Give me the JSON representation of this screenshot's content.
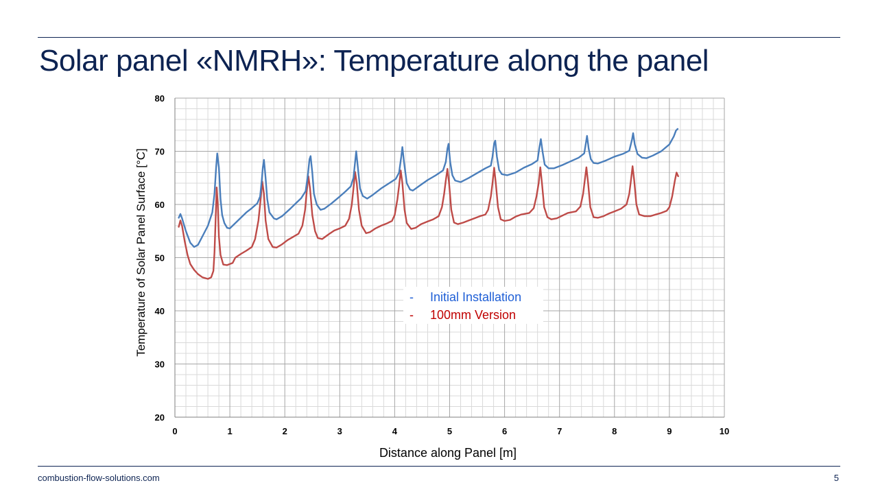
{
  "slide": {
    "title": "Solar panel «NMRH»: Temperature along the panel",
    "footer_site": "combustion-flow-solutions.com",
    "page_number": "5"
  },
  "colors": {
    "navy": "#0d2352",
    "blue_series": "#4a7ebb",
    "red_series": "#be4b48",
    "blue_legend_text": "#1f5fd6",
    "red_legend_text": "#c00000"
  },
  "chart_data": {
    "type": "line",
    "title": "",
    "xlabel": "Distance along Panel [m]",
    "ylabel": "Temperature of Solar Panel Surface [°C]",
    "xlim": [
      0,
      10
    ],
    "ylim": [
      20,
      80
    ],
    "x_ticks": [
      "0",
      "1",
      "2",
      "3",
      "4",
      "5",
      "6",
      "7",
      "8",
      "9",
      "10"
    ],
    "y_ticks": [
      "20",
      "30",
      "40",
      "50",
      "60",
      "70",
      "80"
    ],
    "grid": true,
    "legend_position": "center",
    "series": [
      {
        "name": "Initial Installation",
        "legend_marker": "-",
        "color": "#4a7ebb",
        "points": [
          [
            0.07,
            57.5
          ],
          [
            0.1,
            58.2
          ],
          [
            0.13,
            57.4
          ],
          [
            0.2,
            55
          ],
          [
            0.28,
            52.8
          ],
          [
            0.35,
            52
          ],
          [
            0.42,
            52.4
          ],
          [
            0.5,
            54
          ],
          [
            0.6,
            56
          ],
          [
            0.68,
            58.5
          ],
          [
            0.72,
            62
          ],
          [
            0.75,
            67
          ],
          [
            0.77,
            69.6
          ],
          [
            0.8,
            67
          ],
          [
            0.83,
            61
          ],
          [
            0.86,
            58
          ],
          [
            0.9,
            56.5
          ],
          [
            0.95,
            55.6
          ],
          [
            1.0,
            55.5
          ],
          [
            1.1,
            56.5
          ],
          [
            1.2,
            57.5
          ],
          [
            1.3,
            58.5
          ],
          [
            1.4,
            59.3
          ],
          [
            1.5,
            60.2
          ],
          [
            1.55,
            61.5
          ],
          [
            1.58,
            64.5
          ],
          [
            1.6,
            67
          ],
          [
            1.62,
            68.4
          ],
          [
            1.65,
            65
          ],
          [
            1.68,
            61
          ],
          [
            1.72,
            58.5
          ],
          [
            1.8,
            57.4
          ],
          [
            1.85,
            57.2
          ],
          [
            1.95,
            57.8
          ],
          [
            2.1,
            59.2
          ],
          [
            2.2,
            60.2
          ],
          [
            2.3,
            61.2
          ],
          [
            2.38,
            62.5
          ],
          [
            2.42,
            65.5
          ],
          [
            2.45,
            68.5
          ],
          [
            2.47,
            69.1
          ],
          [
            2.5,
            66
          ],
          [
            2.53,
            62
          ],
          [
            2.58,
            60
          ],
          [
            2.65,
            59
          ],
          [
            2.72,
            59.2
          ],
          [
            2.85,
            60.2
          ],
          [
            3.0,
            61.5
          ],
          [
            3.1,
            62.4
          ],
          [
            3.2,
            63.4
          ],
          [
            3.25,
            65
          ],
          [
            3.28,
            68
          ],
          [
            3.3,
            70
          ],
          [
            3.33,
            67
          ],
          [
            3.37,
            63
          ],
          [
            3.42,
            61.6
          ],
          [
            3.5,
            61.1
          ],
          [
            3.6,
            61.8
          ],
          [
            3.75,
            63
          ],
          [
            3.9,
            64
          ],
          [
            4.02,
            64.8
          ],
          [
            4.08,
            66
          ],
          [
            4.12,
            69
          ],
          [
            4.14,
            70.8
          ],
          [
            4.17,
            68
          ],
          [
            4.22,
            64
          ],
          [
            4.28,
            62.8
          ],
          [
            4.33,
            62.6
          ],
          [
            4.45,
            63.5
          ],
          [
            4.6,
            64.6
          ],
          [
            4.75,
            65.5
          ],
          [
            4.88,
            66.4
          ],
          [
            4.93,
            68
          ],
          [
            4.96,
            70.5
          ],
          [
            4.98,
            71.4
          ],
          [
            5.01,
            68
          ],
          [
            5.05,
            65.5
          ],
          [
            5.1,
            64.5
          ],
          [
            5.2,
            64.2
          ],
          [
            5.35,
            65
          ],
          [
            5.5,
            65.9
          ],
          [
            5.65,
            66.8
          ],
          [
            5.75,
            67.3
          ],
          [
            5.78,
            69
          ],
          [
            5.81,
            71.5
          ],
          [
            5.83,
            72
          ],
          [
            5.86,
            69
          ],
          [
            5.9,
            66.5
          ],
          [
            5.95,
            65.7
          ],
          [
            6.05,
            65.5
          ],
          [
            6.2,
            66
          ],
          [
            6.35,
            66.9
          ],
          [
            6.5,
            67.6
          ],
          [
            6.6,
            68.3
          ],
          [
            6.63,
            70.5
          ],
          [
            6.66,
            72.3
          ],
          [
            6.69,
            70
          ],
          [
            6.73,
            67.5
          ],
          [
            6.8,
            66.8
          ],
          [
            6.9,
            66.8
          ],
          [
            7.05,
            67.4
          ],
          [
            7.2,
            68.1
          ],
          [
            7.35,
            68.8
          ],
          [
            7.45,
            69.6
          ],
          [
            7.48,
            71.5
          ],
          [
            7.5,
            72.9
          ],
          [
            7.53,
            70.5
          ],
          [
            7.57,
            68.5
          ],
          [
            7.62,
            67.8
          ],
          [
            7.7,
            67.7
          ],
          [
            7.85,
            68.3
          ],
          [
            8.0,
            69
          ],
          [
            8.15,
            69.5
          ],
          [
            8.27,
            70.1
          ],
          [
            8.32,
            72.2
          ],
          [
            8.34,
            73.4
          ],
          [
            8.37,
            71.3
          ],
          [
            8.42,
            69.5
          ],
          [
            8.5,
            68.8
          ],
          [
            8.58,
            68.7
          ],
          [
            8.7,
            69.2
          ],
          [
            8.85,
            70
          ],
          [
            9.0,
            71.3
          ],
          [
            9.08,
            72.8
          ],
          [
            9.12,
            73.9
          ],
          [
            9.15,
            74.2
          ]
        ]
      },
      {
        "name": "100mm Version",
        "legend_marker": "-",
        "color": "#be4b48",
        "points": [
          [
            0.07,
            55.8
          ],
          [
            0.1,
            57
          ],
          [
            0.13,
            56
          ],
          [
            0.18,
            53
          ],
          [
            0.23,
            50.5
          ],
          [
            0.28,
            48.8
          ],
          [
            0.35,
            47.7
          ],
          [
            0.42,
            46.9
          ],
          [
            0.5,
            46.3
          ],
          [
            0.6,
            46
          ],
          [
            0.66,
            46.3
          ],
          [
            0.7,
            47.5
          ],
          [
            0.72,
            51
          ],
          [
            0.74,
            57
          ],
          [
            0.76,
            63.2
          ],
          [
            0.78,
            60
          ],
          [
            0.8,
            54
          ],
          [
            0.83,
            50.5
          ],
          [
            0.88,
            48.7
          ],
          [
            0.95,
            48.6
          ],
          [
            1.05,
            49
          ],
          [
            1.1,
            50
          ],
          [
            1.2,
            50.7
          ],
          [
            1.3,
            51.3
          ],
          [
            1.4,
            52
          ],
          [
            1.46,
            53.5
          ],
          [
            1.52,
            57
          ],
          [
            1.56,
            61
          ],
          [
            1.59,
            64.3
          ],
          [
            1.62,
            62
          ],
          [
            1.65,
            57
          ],
          [
            1.7,
            53.5
          ],
          [
            1.78,
            52
          ],
          [
            1.85,
            51.9
          ],
          [
            1.95,
            52.5
          ],
          [
            2.05,
            53.3
          ],
          [
            2.15,
            53.9
          ],
          [
            2.25,
            54.5
          ],
          [
            2.32,
            56
          ],
          [
            2.37,
            59
          ],
          [
            2.4,
            62.5
          ],
          [
            2.43,
            65.3
          ],
          [
            2.46,
            63
          ],
          [
            2.5,
            58
          ],
          [
            2.55,
            55
          ],
          [
            2.6,
            53.7
          ],
          [
            2.68,
            53.5
          ],
          [
            2.8,
            54.4
          ],
          [
            2.9,
            55.1
          ],
          [
            3.0,
            55.5
          ],
          [
            3.1,
            56
          ],
          [
            3.17,
            57.3
          ],
          [
            3.22,
            60
          ],
          [
            3.25,
            63
          ],
          [
            3.28,
            66.1
          ],
          [
            3.31,
            64
          ],
          [
            3.35,
            59
          ],
          [
            3.4,
            56
          ],
          [
            3.48,
            54.6
          ],
          [
            3.55,
            54.8
          ],
          [
            3.65,
            55.5
          ],
          [
            3.75,
            56
          ],
          [
            3.85,
            56.4
          ],
          [
            3.95,
            56.9
          ],
          [
            4.0,
            58
          ],
          [
            4.05,
            61
          ],
          [
            4.08,
            63.5
          ],
          [
            4.11,
            66.4
          ],
          [
            4.14,
            64
          ],
          [
            4.18,
            59
          ],
          [
            4.22,
            56.5
          ],
          [
            4.3,
            55.4
          ],
          [
            4.38,
            55.6
          ],
          [
            4.48,
            56.3
          ],
          [
            4.6,
            56.8
          ],
          [
            4.7,
            57.2
          ],
          [
            4.8,
            57.8
          ],
          [
            4.86,
            59.5
          ],
          [
            4.9,
            62
          ],
          [
            4.93,
            64.5
          ],
          [
            4.96,
            66.7
          ],
          [
            4.99,
            64
          ],
          [
            5.03,
            59
          ],
          [
            5.08,
            56.6
          ],
          [
            5.15,
            56.3
          ],
          [
            5.25,
            56.6
          ],
          [
            5.35,
            57
          ],
          [
            5.45,
            57.4
          ],
          [
            5.55,
            57.8
          ],
          [
            5.65,
            58.1
          ],
          [
            5.7,
            59
          ],
          [
            5.75,
            61.5
          ],
          [
            5.78,
            64
          ],
          [
            5.81,
            66.9
          ],
          [
            5.84,
            64
          ],
          [
            5.88,
            59.5
          ],
          [
            5.93,
            57.2
          ],
          [
            6.0,
            56.9
          ],
          [
            6.1,
            57.1
          ],
          [
            6.2,
            57.7
          ],
          [
            6.3,
            58.1
          ],
          [
            6.45,
            58.4
          ],
          [
            6.53,
            59.3
          ],
          [
            6.58,
            61.5
          ],
          [
            6.62,
            64
          ],
          [
            6.65,
            67
          ],
          [
            6.68,
            64
          ],
          [
            6.72,
            59.5
          ],
          [
            6.78,
            57.6
          ],
          [
            6.85,
            57.2
          ],
          [
            6.95,
            57.4
          ],
          [
            7.05,
            57.9
          ],
          [
            7.15,
            58.4
          ],
          [
            7.3,
            58.7
          ],
          [
            7.38,
            59.6
          ],
          [
            7.43,
            62
          ],
          [
            7.46,
            64.5
          ],
          [
            7.49,
            67
          ],
          [
            7.52,
            64
          ],
          [
            7.56,
            59.5
          ],
          [
            7.62,
            57.6
          ],
          [
            7.7,
            57.5
          ],
          [
            7.8,
            57.8
          ],
          [
            7.9,
            58.3
          ],
          [
            8.0,
            58.7
          ],
          [
            8.12,
            59.2
          ],
          [
            8.22,
            60
          ],
          [
            8.27,
            62
          ],
          [
            8.3,
            64.5
          ],
          [
            8.33,
            67.2
          ],
          [
            8.36,
            64.5
          ],
          [
            8.4,
            60
          ],
          [
            8.45,
            58.1
          ],
          [
            8.55,
            57.8
          ],
          [
            8.65,
            57.8
          ],
          [
            8.75,
            58.1
          ],
          [
            8.85,
            58.4
          ],
          [
            8.95,
            58.8
          ],
          [
            9.0,
            59.5
          ],
          [
            9.05,
            61.5
          ],
          [
            9.1,
            64.5
          ],
          [
            9.13,
            66
          ],
          [
            9.16,
            65.3
          ]
        ]
      }
    ]
  }
}
